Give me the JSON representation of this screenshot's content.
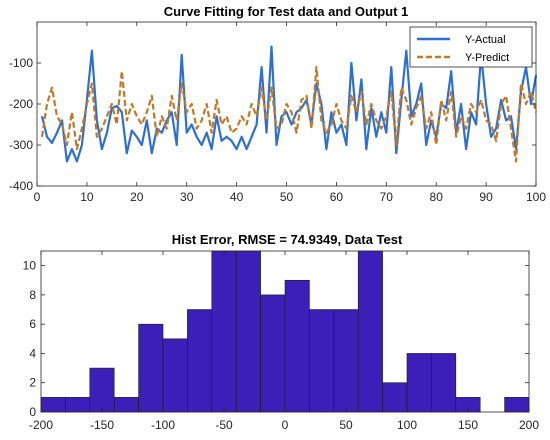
{
  "chart_data": [
    {
      "type": "line",
      "title": "Curve Fitting for  Test data and Output 1",
      "xlim": [
        0,
        100
      ],
      "ylim": [
        -400,
        0
      ],
      "xticks": [
        0,
        10,
        20,
        30,
        40,
        50,
        60,
        70,
        80,
        90,
        100
      ],
      "yticks": [
        -400,
        -300,
        -200,
        -100
      ],
      "legend_position": "top-right",
      "grid": false,
      "series": [
        {
          "name": "Y-Actual",
          "color": "#2e6fd4",
          "style": "solid",
          "x": [
            1,
            2,
            3,
            4,
            5,
            6,
            7,
            8,
            9,
            10,
            11,
            12,
            13,
            14,
            15,
            16,
            17,
            18,
            19,
            20,
            21,
            22,
            23,
            24,
            25,
            26,
            27,
            28,
            29,
            30,
            31,
            32,
            33,
            34,
            35,
            36,
            37,
            38,
            39,
            40,
            41,
            42,
            43,
            44,
            45,
            46,
            47,
            48,
            49,
            50,
            51,
            52,
            53,
            54,
            55,
            56,
            57,
            58,
            59,
            60,
            61,
            62,
            63,
            64,
            65,
            66,
            67,
            68,
            69,
            70,
            71,
            72,
            73,
            74,
            75,
            76,
            77,
            78,
            79,
            80,
            81,
            82,
            83,
            84,
            85,
            86,
            87,
            88,
            89,
            90,
            91,
            92,
            93,
            94,
            95,
            96,
            97,
            98,
            99,
            100
          ],
          "values": [
            -230,
            -280,
            -295,
            -270,
            -240,
            -340,
            -310,
            -340,
            -300,
            -190,
            -70,
            -240,
            -310,
            -270,
            -210,
            -205,
            -220,
            -320,
            -265,
            -280,
            -300,
            -240,
            -320,
            -260,
            -270,
            -240,
            -220,
            -300,
            -80,
            -270,
            -250,
            -280,
            -300,
            -270,
            -310,
            -230,
            -290,
            -280,
            -290,
            -310,
            -280,
            -310,
            -280,
            -250,
            -110,
            -270,
            -60,
            -300,
            -230,
            -220,
            -250,
            -220,
            -210,
            -190,
            -250,
            -150,
            -200,
            -310,
            -220,
            -270,
            -250,
            -300,
            -100,
            -240,
            -140,
            -310,
            -210,
            -280,
            -220,
            -270,
            -110,
            -320,
            -190,
            -70,
            -230,
            -200,
            -150,
            -300,
            -240,
            -280,
            -200,
            -210,
            -120,
            -270,
            -200,
            -310,
            -220,
            -250,
            -80,
            -200,
            -280,
            -260,
            -190,
            -240,
            -230,
            -310,
            -170,
            -110,
            -200,
            -130
          ]
        },
        {
          "name": "Y-Predict",
          "color": "#c0792a",
          "style": "dashed",
          "x": [
            1,
            2,
            3,
            4,
            5,
            6,
            7,
            8,
            9,
            10,
            11,
            12,
            13,
            14,
            15,
            16,
            17,
            18,
            19,
            20,
            21,
            22,
            23,
            24,
            25,
            26,
            27,
            28,
            29,
            30,
            31,
            32,
            33,
            34,
            35,
            36,
            37,
            38,
            39,
            40,
            41,
            42,
            43,
            44,
            45,
            46,
            47,
            48,
            49,
            50,
            51,
            52,
            53,
            54,
            55,
            56,
            57,
            58,
            59,
            60,
            61,
            62,
            63,
            64,
            65,
            66,
            67,
            68,
            69,
            70,
            71,
            72,
            73,
            74,
            75,
            76,
            77,
            78,
            79,
            80,
            81,
            82,
            83,
            84,
            85,
            86,
            87,
            88,
            89,
            90,
            91,
            92,
            93,
            94,
            95,
            96,
            97,
            98,
            99,
            100
          ],
          "values": [
            -280,
            -200,
            -160,
            -230,
            -250,
            -300,
            -220,
            -310,
            -260,
            -200,
            -150,
            -280,
            -260,
            -230,
            -200,
            -250,
            -120,
            -240,
            -200,
            -230,
            -250,
            -220,
            -180,
            -280,
            -230,
            -260,
            -180,
            -240,
            -150,
            -220,
            -200,
            -260,
            -240,
            -200,
            -270,
            -190,
            -250,
            -230,
            -270,
            -260,
            -230,
            -250,
            -200,
            -230,
            -160,
            -240,
            -160,
            -260,
            -250,
            -200,
            -220,
            -270,
            -190,
            -180,
            -260,
            -110,
            -240,
            -270,
            -250,
            -200,
            -240,
            -260,
            -180,
            -220,
            -170,
            -250,
            -200,
            -240,
            -260,
            -230,
            -170,
            -300,
            -160,
            -190,
            -250,
            -210,
            -180,
            -260,
            -220,
            -300,
            -190,
            -240,
            -170,
            -280,
            -230,
            -260,
            -200,
            -220,
            -190,
            -240,
            -250,
            -290,
            -200,
            -180,
            -260,
            -340,
            -150,
            -200,
            -170,
            -220
          ]
        }
      ]
    },
    {
      "type": "bar",
      "title": "Hist Error, RMSE = 74.9349, Data  Test",
      "xlim": [
        -200,
        200
      ],
      "ylim": [
        0,
        11
      ],
      "xticks": [
        -200,
        -150,
        -100,
        -50,
        0,
        50,
        100,
        150,
        200
      ],
      "yticks": [
        0,
        2,
        4,
        6,
        8,
        10
      ],
      "bar_color": "#3a20b8",
      "bins": [
        {
          "x0": -200,
          "x1": -180,
          "count": 1
        },
        {
          "x0": -180,
          "x1": -160,
          "count": 1
        },
        {
          "x0": -160,
          "x1": -140,
          "count": 3
        },
        {
          "x0": -140,
          "x1": -120,
          "count": 1
        },
        {
          "x0": -120,
          "x1": -100,
          "count": 6
        },
        {
          "x0": -100,
          "x1": -80,
          "count": 5
        },
        {
          "x0": -80,
          "x1": -60,
          "count": 7
        },
        {
          "x0": -60,
          "x1": -40,
          "count": 11
        },
        {
          "x0": -40,
          "x1": -20,
          "count": 11
        },
        {
          "x0": -20,
          "x1": 0,
          "count": 8
        },
        {
          "x0": 0,
          "x1": 20,
          "count": 9
        },
        {
          "x0": 20,
          "x1": 40,
          "count": 7
        },
        {
          "x0": 40,
          "x1": 60,
          "count": 7
        },
        {
          "x0": 60,
          "x1": 80,
          "count": 11
        },
        {
          "x0": 80,
          "x1": 100,
          "count": 2
        },
        {
          "x0": 100,
          "x1": 120,
          "count": 4
        },
        {
          "x0": 120,
          "x1": 140,
          "count": 4
        },
        {
          "x0": 140,
          "x1": 160,
          "count": 1
        },
        {
          "x0": 160,
          "x1": 180,
          "count": 0
        },
        {
          "x0": 180,
          "x1": 200,
          "count": 1
        }
      ]
    }
  ]
}
